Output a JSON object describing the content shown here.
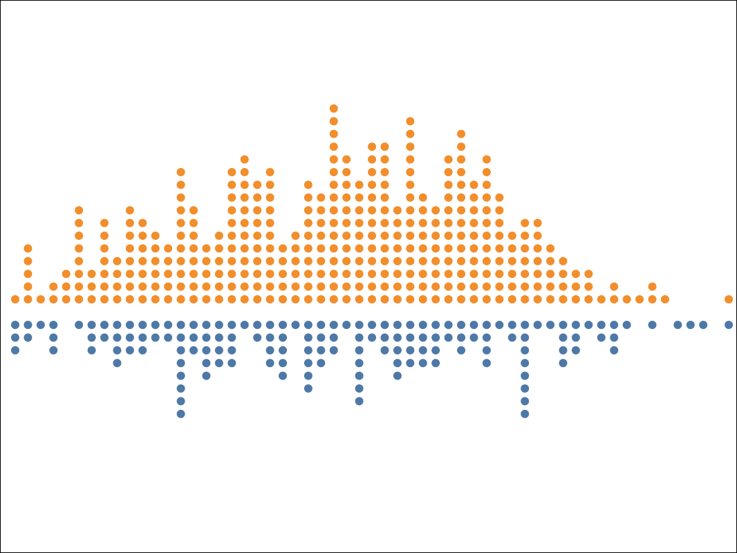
{
  "chart_data": {
    "type": "dot-histogram",
    "title": "",
    "xlabel": "",
    "ylabel": "",
    "legend": "none",
    "grid": false,
    "series": [
      {
        "color": "#F28E2B",
        "direction": "up",
        "counts": [
          1,
          5,
          1,
          2,
          3,
          8,
          3,
          7,
          4,
          8,
          7,
          6,
          5,
          11,
          8,
          5,
          6,
          11,
          12,
          10,
          11,
          5,
          6,
          10,
          9,
          16,
          12,
          10,
          13,
          13,
          8,
          15,
          9,
          8,
          12,
          14,
          10,
          12,
          9,
          6,
          7,
          7,
          5,
          4,
          3,
          3,
          1,
          2,
          1,
          1,
          2,
          1,
          0,
          0,
          0,
          0,
          1
        ]
      },
      {
        "color": "#4E79A7",
        "direction": "down",
        "counts": [
          3,
          2,
          1,
          3,
          0,
          1,
          3,
          2,
          4,
          3,
          3,
          2,
          2,
          8,
          3,
          5,
          4,
          4,
          1,
          2,
          4,
          5,
          1,
          6,
          4,
          3,
          1,
          7,
          2,
          3,
          5,
          4,
          4,
          4,
          2,
          3,
          2,
          4,
          1,
          2,
          8,
          1,
          1,
          4,
          3,
          1,
          2,
          3,
          1,
          0,
          1,
          0,
          1,
          1,
          1,
          0,
          1
        ]
      }
    ]
  }
}
